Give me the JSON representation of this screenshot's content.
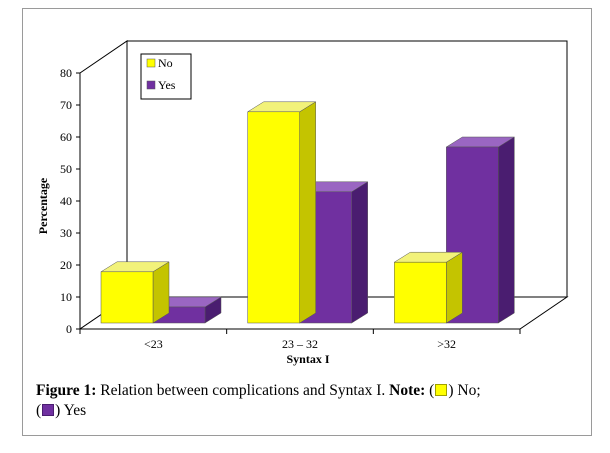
{
  "chart_data": {
    "type": "bar",
    "categories": [
      "<23",
      "23 – 32",
      ">32"
    ],
    "series": [
      {
        "name": "No",
        "values": [
          16,
          66,
          19
        ],
        "color": "#ffff00",
        "side": "#c4c400",
        "top": "#f2f27a"
      },
      {
        "name": "Yes",
        "values": [
          5,
          41,
          55
        ],
        "color": "#7030a0",
        "side": "#4a1d70",
        "top": "#9a66c2"
      }
    ],
    "xlabel": "Syntax I",
    "ylabel": "Percentage",
    "ylim": [
      0,
      80
    ],
    "yticks": [
      0,
      10,
      20,
      30,
      40,
      50,
      60,
      70,
      80
    ],
    "legend_position": "top-left",
    "style": "3d-bar"
  },
  "caption": {
    "label": "Figure 1:",
    "text": " Relation between complications and Syntax I. ",
    "note_label": "Note:",
    "note_open1": " (",
    "note_no": ") No;",
    "note_open2": "(",
    "note_yes": ") Yes"
  }
}
